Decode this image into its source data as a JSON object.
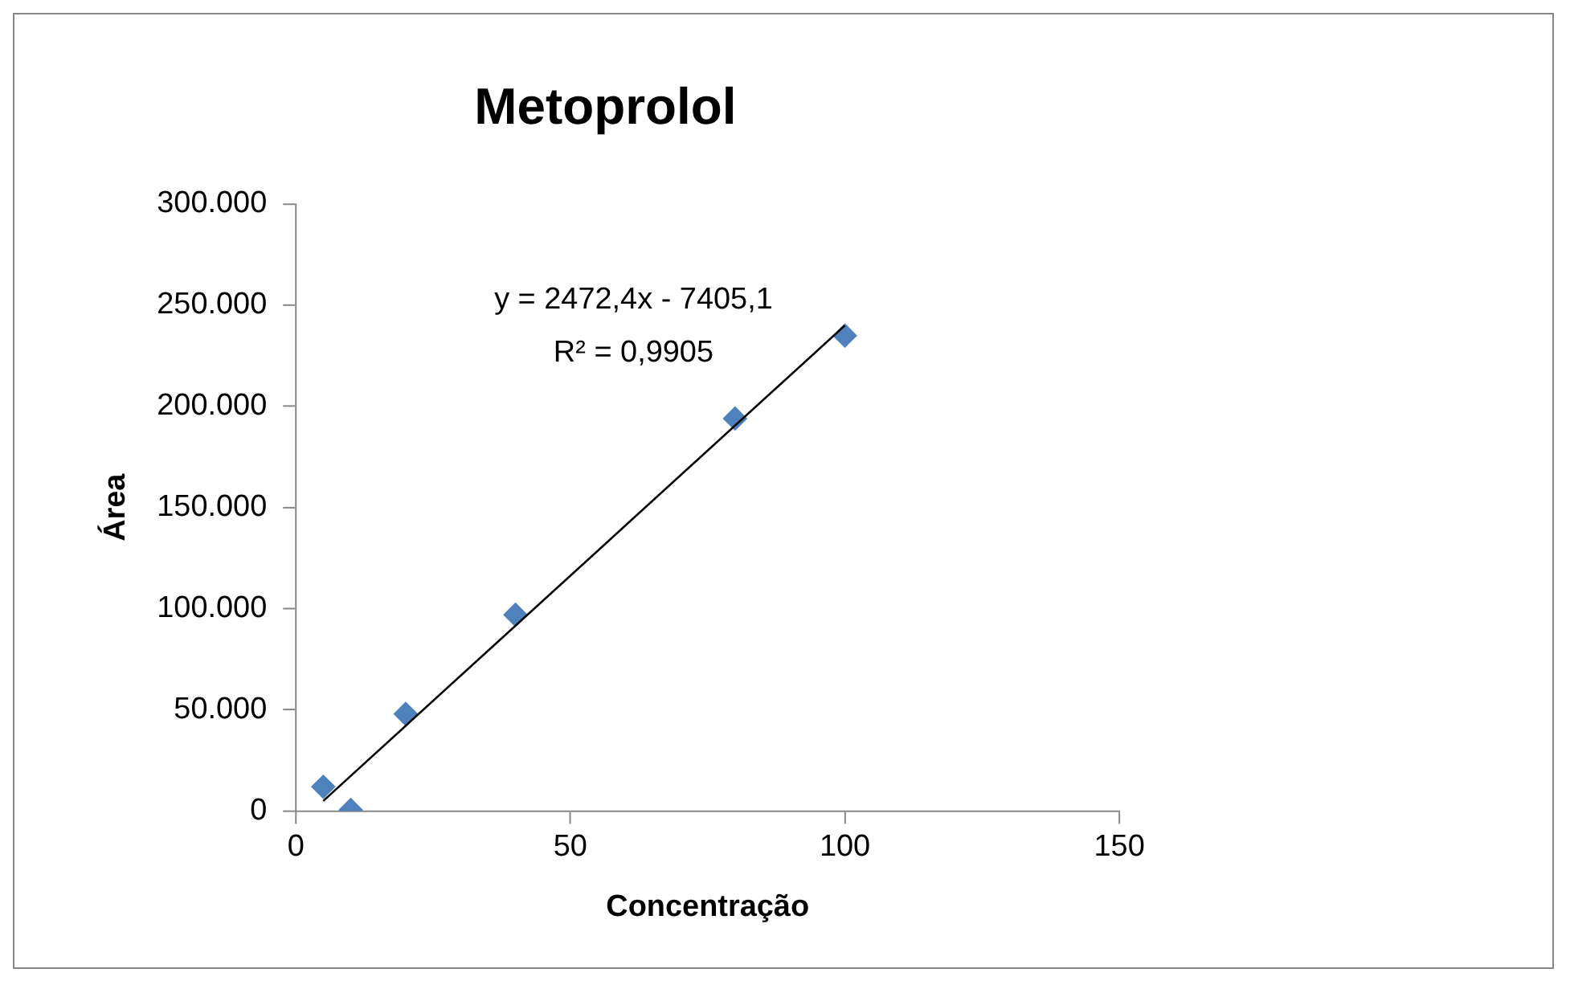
{
  "chart_data": {
    "type": "scatter",
    "title": "Metoprolol",
    "xlabel": "Concentração",
    "ylabel": "Área",
    "xlim": [
      0,
      150
    ],
    "xticks": [
      0,
      50,
      100,
      150
    ],
    "ylim": [
      0,
      300000
    ],
    "yticks": [
      0,
      {
        "value": 50000,
        "label": "50.000"
      },
      {
        "value": 100000,
        "label": "100.000"
      },
      {
        "value": 150000,
        "label": "150.000"
      },
      {
        "value": 200000,
        "label": "200.000"
      },
      {
        "value": 250000,
        "label": "250.000"
      },
      {
        "value": 300000,
        "label": "300.000"
      }
    ],
    "grid": false,
    "legend": false,
    "marker": "diamond",
    "series": [
      {
        "type": "scatter",
        "color": "#4f81bd",
        "x": [
          5,
          10,
          20,
          40,
          80,
          100
        ],
        "values": [
          12000,
          500,
          48000,
          97000,
          194000,
          235000
        ]
      },
      {
        "type": "line",
        "color": "#000000",
        "marker": "none",
        "x": [
          5,
          100
        ],
        "values": [
          5000,
          240000
        ]
      }
    ],
    "annotations": [
      "y = 2472,4x - 7405,1",
      "R² = 0,9905"
    ]
  }
}
